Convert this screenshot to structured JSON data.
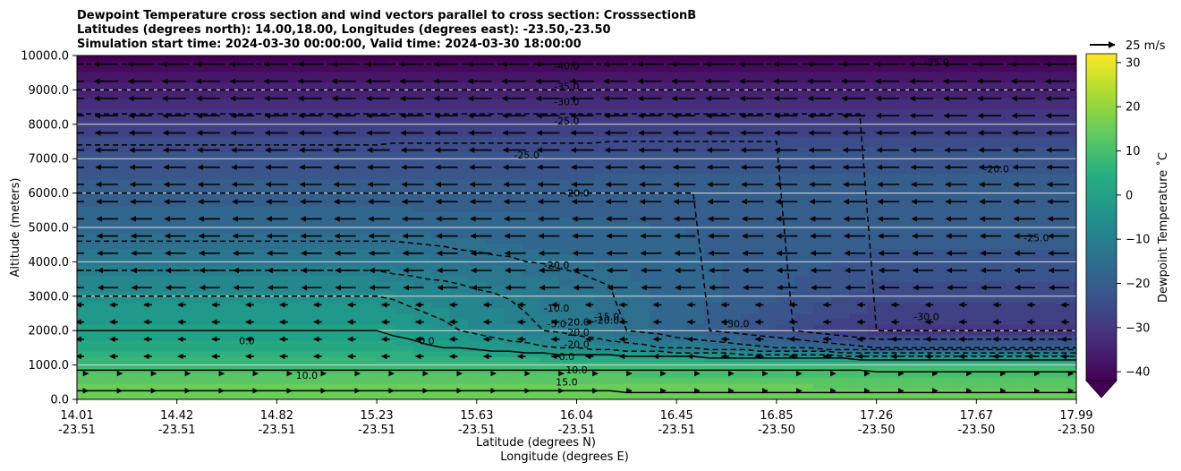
{
  "chart_data": {
    "type": "heatmap",
    "title_lines": [
      "Dewpoint Temperature cross section and wind vectors parallel to cross section: CrosssectionB",
      "Latitudes (degrees north): 14.00,18.00, Longitudes (degrees east): -23.50,-23.50",
      "Simulation start time: 2024-03-30 00:00:00, Valid time: 2024-03-30 18:00:00"
    ],
    "xlabel": "Latitude (degrees N)",
    "xlabel2": "Longitude (degrees E)",
    "ylabel": "Altitude (meters)",
    "x_ticks": [
      {
        "lat": "14.01",
        "lon": "-23.51"
      },
      {
        "lat": "14.42",
        "lon": "-23.51"
      },
      {
        "lat": "14.82",
        "lon": "-23.51"
      },
      {
        "lat": "15.23",
        "lon": "-23.51"
      },
      {
        "lat": "15.63",
        "lon": "-23.51"
      },
      {
        "lat": "16.04",
        "lon": "-23.51"
      },
      {
        "lat": "16.45",
        "lon": "-23.51"
      },
      {
        "lat": "16.85",
        "lon": "-23.50"
      },
      {
        "lat": "17.26",
        "lon": "-23.50"
      },
      {
        "lat": "17.67",
        "lon": "-23.50"
      },
      {
        "lat": "17.99",
        "lon": "-23.50"
      }
    ],
    "y_ticks": [
      "0.0",
      "1000.0",
      "2000.0",
      "3000.0",
      "4000.0",
      "5000.0",
      "6000.0",
      "7000.0",
      "8000.0",
      "9000.0",
      "10000.0"
    ],
    "ylim": [
      0,
      10000
    ],
    "grid": "horizontal lines at y ticks",
    "colorbar": {
      "label": "Dewpoint Temperature ˚C",
      "ticks": [
        "30",
        "20",
        "10",
        "0",
        "−10",
        "−20",
        "−30",
        "−40"
      ],
      "range": [
        -42,
        32
      ],
      "extend": "min",
      "colormap": "viridis"
    },
    "quiver_key": {
      "label": "25 m/s"
    },
    "contour_labels": [
      "-40.0",
      "-35.0",
      "-30.0",
      "-25.0",
      "-25.0",
      "-20.0",
      "-20.0",
      "-20.0",
      "-20.0",
      "-20.0",
      "-20.0",
      "-15.0",
      "-10.0",
      "-5.0",
      "-30.0",
      "-30.0",
      "0.0",
      "0.0",
      "0.0",
      "10.0",
      "10.0",
      "15.0",
      "-20.0",
      "-25.0",
      "-35.0"
    ],
    "dewpoint_profile": {
      "altitude_m": [
        0,
        500,
        1000,
        1500,
        2000,
        3000,
        4000,
        5000,
        6000,
        7000,
        8000,
        9000,
        10000
      ],
      "south_end_C": [
        16,
        14,
        8,
        3,
        0,
        -5,
        -12,
        -17,
        -20,
        -23,
        -28,
        -35,
        -42
      ],
      "north_end_C": [
        16,
        13,
        8,
        -20,
        -30,
        -25,
        -22,
        -20,
        -20,
        -22,
        -28,
        -35,
        -42
      ]
    },
    "wind": {
      "description": "Easterly flow aloft (vectors pointing toward the south end), weak flow near the surface",
      "max_speed_ms": 25
    }
  }
}
